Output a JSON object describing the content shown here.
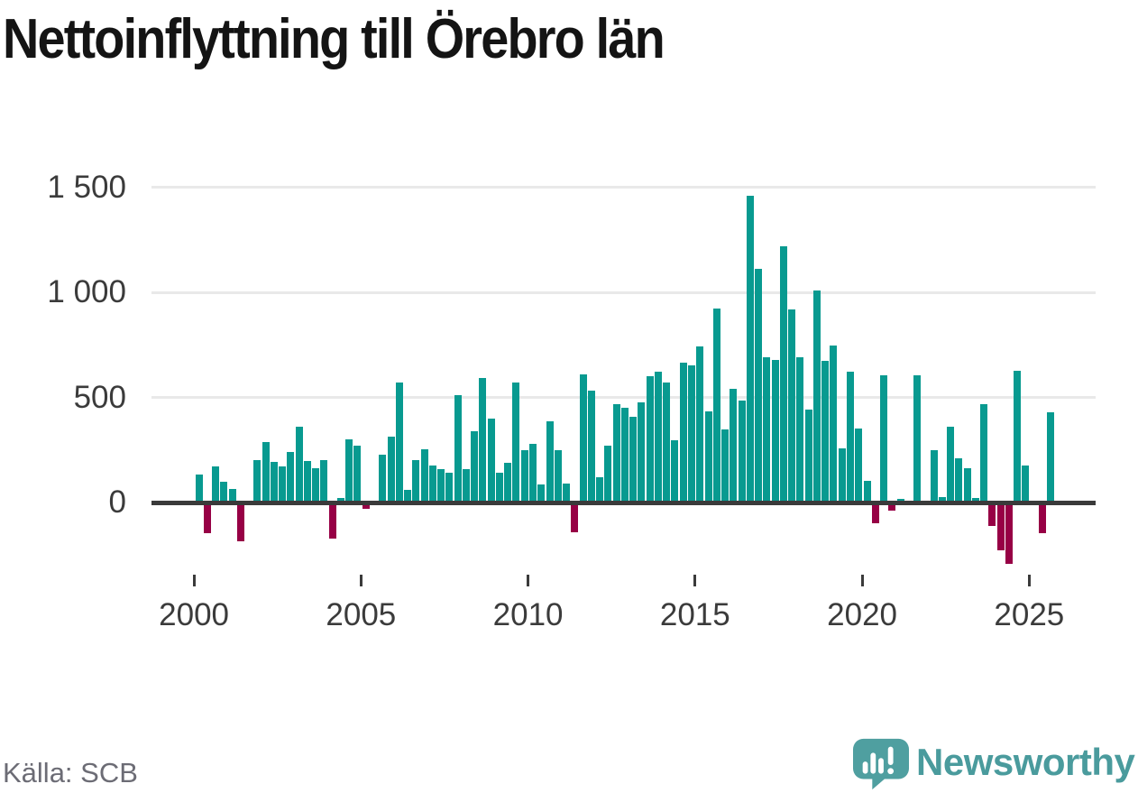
{
  "title": "Nettoinflyttning till Örebro län",
  "source": "Källa: SCB",
  "logo": {
    "text": "Newsworthy"
  },
  "colors": {
    "positive": "#089a90",
    "negative": "#970045",
    "axis": "#3a3a3a",
    "grid": "#e9e9e9",
    "tick_label": "#3b3b3b",
    "title_text": "#141414",
    "source_text": "#6c6c75",
    "logo_teal": "#4f9fa0",
    "logo_text": "#4a9b9d"
  },
  "chart_data": {
    "type": "bar",
    "title": "Nettoinflyttning till Örebro län",
    "frequency": "quarterly",
    "start_period": "2000-Q1",
    "end_period": "2025-Q3",
    "grid": "horizontal",
    "ylim": [
      -350,
      1550
    ],
    "y_ticks": [
      {
        "value": 0,
        "label": "0"
      },
      {
        "value": 500,
        "label": "500"
      },
      {
        "value": 1000,
        "label": "1 000"
      },
      {
        "value": 1500,
        "label": "1 500"
      }
    ],
    "x_ticks": [
      {
        "year": 2000,
        "label": "2000"
      },
      {
        "year": 2005,
        "label": "2005"
      },
      {
        "year": 2010,
        "label": "2010"
      },
      {
        "year": 2015,
        "label": "2015"
      },
      {
        "year": 2020,
        "label": "2020"
      },
      {
        "year": 2025,
        "label": "2025"
      }
    ],
    "values": [
      135,
      -145,
      170,
      100,
      65,
      -185,
      0,
      200,
      290,
      195,
      170,
      240,
      360,
      197,
      163,
      200,
      -170,
      20,
      300,
      270,
      -30,
      -12,
      228,
      315,
      570,
      60,
      200,
      255,
      175,
      157,
      140,
      510,
      158,
      341,
      592,
      400,
      142,
      190,
      572,
      249,
      278,
      85,
      385,
      249,
      90,
      -142,
      610,
      535,
      122,
      270,
      470,
      450,
      410,
      478,
      600,
      624,
      570,
      297,
      665,
      652,
      744,
      433,
      926,
      347,
      542,
      484,
      1462,
      1115,
      694,
      681,
      1220,
      920,
      694,
      441,
      1010,
      675,
      747,
      257,
      624,
      354,
      105,
      -100,
      604,
      -40,
      18,
      0,
      604,
      0,
      249,
      24,
      360,
      212,
      162,
      20,
      468,
      -111,
      -229,
      -292,
      629,
      177,
      0,
      -145,
      428
    ]
  }
}
